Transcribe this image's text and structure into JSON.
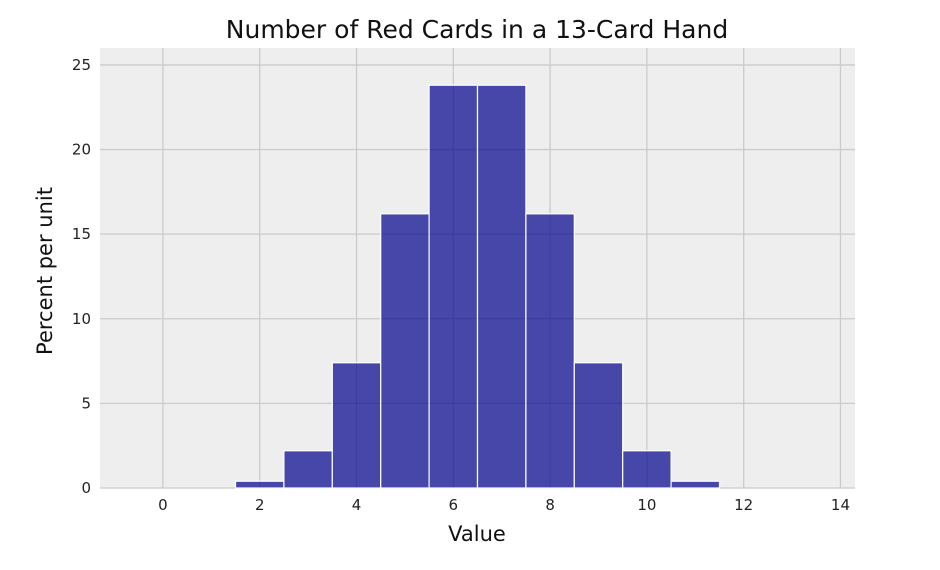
{
  "chart_data": {
    "type": "bar",
    "title": "Number of Red Cards in a 13-Card Hand",
    "xlabel": "Value",
    "ylabel": "Percent per unit",
    "xlim": [
      -1.3,
      14.3
    ],
    "ylim": [
      0,
      26
    ],
    "xticks": [
      0,
      2,
      4,
      6,
      8,
      10,
      12,
      14
    ],
    "yticks": [
      0,
      5,
      10,
      15,
      20,
      25
    ],
    "grid": true,
    "background": "#eeeeee",
    "bar_color": "#00008b",
    "bin_width": 1,
    "bins": [
      1.5,
      2.5,
      3.5,
      4.5,
      5.5,
      6.5,
      7.5,
      8.5,
      9.5,
      10.5
    ],
    "x": [
      2,
      3,
      4,
      5,
      6,
      7,
      8,
      9,
      10,
      11
    ],
    "values": [
      0.4,
      2.2,
      7.4,
      16.2,
      23.8,
      23.8,
      16.2,
      7.4,
      2.2,
      0.4
    ]
  }
}
